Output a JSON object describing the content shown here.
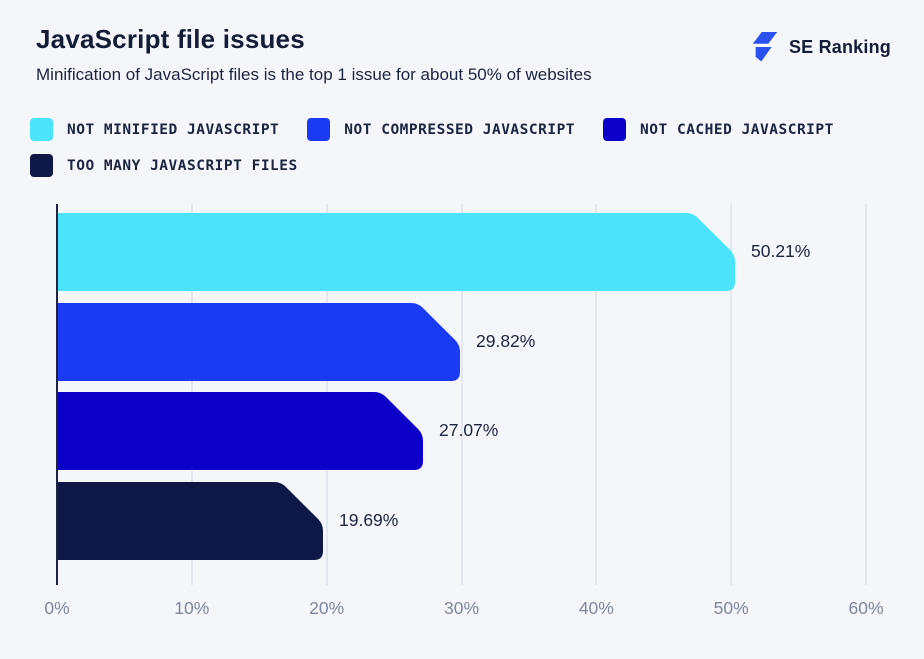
{
  "header": {
    "title": "JavaScript file issues",
    "subtitle": "Minification of JavaScript files is the top 1 issue for about 50% of websites",
    "brand": "SE Ranking"
  },
  "colors": {
    "background": "#f5f6fa",
    "text_dark": "#141c38",
    "axis_line": "#1c2442",
    "gridline": "#e2e7ef",
    "tick_label": "#7d879d",
    "logo_blue": "#2b52f0"
  },
  "chart_data": {
    "type": "bar",
    "orientation": "horizontal",
    "title": "JavaScript file issues",
    "subtitle": "Minification of JavaScript files is the top 1 issue for about 50% of websites",
    "categories": [
      "NOT MINIFIED JAVASCRIPT",
      "NOT COMPRESSED JAVASCRIPT",
      "NOT CACHED JAVASCRIPT",
      "TOO MANY JAVASCRIPT FILES"
    ],
    "values": [
      50.21,
      29.82,
      27.07,
      19.69
    ],
    "value_labels": [
      "50.21%",
      "29.82%",
      "27.07%",
      "19.69%"
    ],
    "bar_colors": [
      "#4ce4fa",
      "#1a3bf3",
      "#0c00c8",
      "#0d1847"
    ],
    "xlabel": "",
    "ylabel": "",
    "xlim": [
      0,
      60
    ],
    "x_ticks": [
      "0%",
      "10%",
      "20%",
      "30%",
      "40%",
      "50%",
      "60%"
    ],
    "x_tick_values": [
      0,
      10,
      20,
      30,
      40,
      50,
      60
    ],
    "grid": "vertical-only",
    "legend_position": "top-left"
  }
}
